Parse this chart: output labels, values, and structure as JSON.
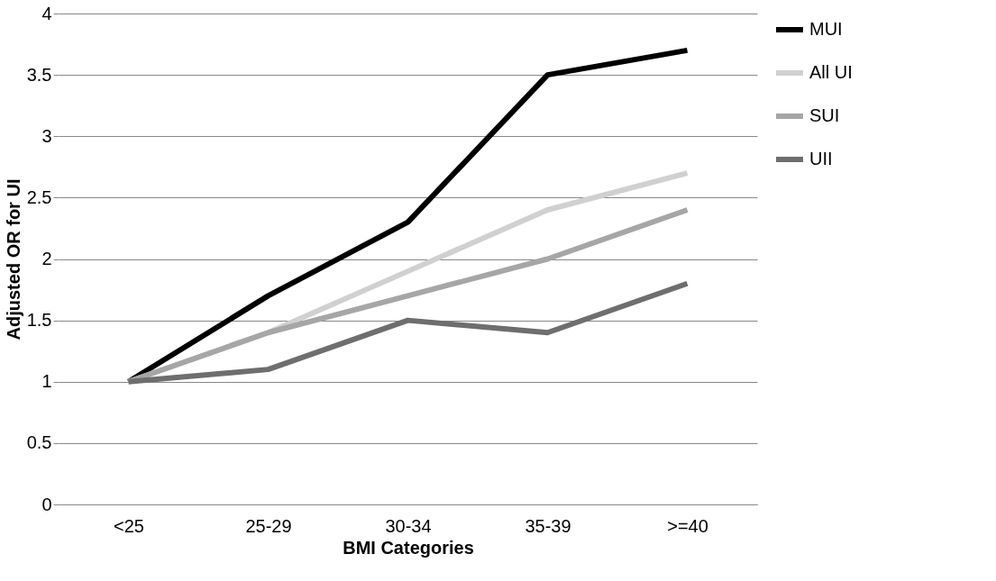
{
  "chart_data": {
    "type": "line",
    "xlabel": "BMI Categories",
    "ylabel": "Adjusted OR for UI",
    "categories": [
      "<25",
      "25-29",
      "30-34",
      "35-39",
      ">=40"
    ],
    "series": [
      {
        "name": "MUI",
        "color": "#000000",
        "values": [
          1,
          1.7,
          2.3,
          3.5,
          3.7
        ]
      },
      {
        "name": "All UI",
        "color": "#d0d0d0",
        "values": [
          1,
          1.4,
          1.9,
          2.4,
          2.7
        ]
      },
      {
        "name": "SUI",
        "color": "#a6a6a6",
        "values": [
          1,
          1.4,
          1.7,
          2.0,
          2.4
        ]
      },
      {
        "name": "UII",
        "color": "#6e6e6e",
        "values": [
          1,
          1.1,
          1.5,
          1.4,
          1.8
        ]
      }
    ],
    "ylim": [
      0,
      4
    ],
    "yticks": [
      0,
      0.5,
      1,
      1.5,
      2,
      2.5,
      3,
      3.5,
      4
    ],
    "grid": "y",
    "legend": "right",
    "marker": "none",
    "line_style": "solid"
  }
}
